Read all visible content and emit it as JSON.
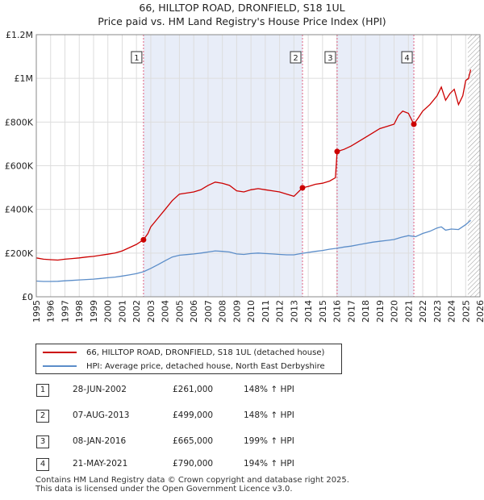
{
  "header": {
    "title": "66, HILLTOP ROAD, DRONFIELD, S18 1UL",
    "subtitle": "Price paid vs. HM Land Registry's House Price Index (HPI)"
  },
  "chart_data": {
    "type": "line",
    "title": "66, HILLTOP ROAD, DRONFIELD, S18 1UL",
    "subtitle": "Price paid vs. HM Land Registry's House Price Index (HPI)",
    "xlabel": "",
    "ylabel": "",
    "xlim": [
      1995,
      2026
    ],
    "ylim": [
      0,
      1200000
    ],
    "x_ticks": [
      1995,
      1996,
      1997,
      1998,
      1999,
      2000,
      2001,
      2002,
      2003,
      2004,
      2005,
      2006,
      2007,
      2008,
      2009,
      2010,
      2011,
      2012,
      2013,
      2014,
      2015,
      2016,
      2017,
      2018,
      2019,
      2020,
      2021,
      2022,
      2023,
      2024,
      2025,
      2026
    ],
    "y_ticks": [
      {
        "value": 0,
        "label": "£0"
      },
      {
        "value": 200000,
        "label": "£200K"
      },
      {
        "value": 400000,
        "label": "£400K"
      },
      {
        "value": 600000,
        "label": "£600K"
      },
      {
        "value": 800000,
        "label": "£800K"
      },
      {
        "value": 1000000,
        "label": "£1M"
      },
      {
        "value": 1200000,
        "label": "£1.2M"
      }
    ],
    "grid": true,
    "shaded_regions": [
      {
        "from": 2002.49,
        "to": 2013.6
      },
      {
        "from": 2016.02,
        "to": 2021.38
      }
    ],
    "hatched_future_from": 2025.15,
    "series": [
      {
        "name": "66, HILLTOP ROAD, DRONFIELD, S18 1UL (detached house)",
        "color": "#cc0000",
        "points": [
          [
            1995.0,
            178000
          ],
          [
            1995.5,
            172000
          ],
          [
            1996.0,
            170000
          ],
          [
            1996.5,
            168000
          ],
          [
            1997.0,
            172000
          ],
          [
            1997.5,
            175000
          ],
          [
            1998.0,
            178000
          ],
          [
            1998.5,
            182000
          ],
          [
            1999.0,
            185000
          ],
          [
            1999.5,
            190000
          ],
          [
            2000.0,
            195000
          ],
          [
            2000.5,
            200000
          ],
          [
            2001.0,
            210000
          ],
          [
            2001.5,
            225000
          ],
          [
            2002.0,
            240000
          ],
          [
            2002.49,
            261000
          ],
          [
            2002.8,
            290000
          ],
          [
            2003.0,
            320000
          ],
          [
            2003.5,
            360000
          ],
          [
            2004.0,
            400000
          ],
          [
            2004.5,
            440000
          ],
          [
            2005.0,
            470000
          ],
          [
            2005.5,
            475000
          ],
          [
            2006.0,
            480000
          ],
          [
            2006.5,
            490000
          ],
          [
            2007.0,
            510000
          ],
          [
            2007.5,
            525000
          ],
          [
            2008.0,
            520000
          ],
          [
            2008.5,
            510000
          ],
          [
            2009.0,
            485000
          ],
          [
            2009.5,
            480000
          ],
          [
            2010.0,
            490000
          ],
          [
            2010.5,
            495000
          ],
          [
            2011.0,
            490000
          ],
          [
            2011.5,
            485000
          ],
          [
            2012.0,
            480000
          ],
          [
            2012.5,
            470000
          ],
          [
            2013.0,
            460000
          ],
          [
            2013.6,
            499000
          ],
          [
            2014.0,
            505000
          ],
          [
            2014.5,
            515000
          ],
          [
            2015.0,
            520000
          ],
          [
            2015.5,
            530000
          ],
          [
            2015.9,
            545000
          ],
          [
            2016.02,
            665000
          ],
          [
            2016.5,
            675000
          ],
          [
            2017.0,
            690000
          ],
          [
            2017.5,
            710000
          ],
          [
            2018.0,
            730000
          ],
          [
            2018.5,
            750000
          ],
          [
            2019.0,
            770000
          ],
          [
            2019.5,
            780000
          ],
          [
            2020.0,
            790000
          ],
          [
            2020.3,
            830000
          ],
          [
            2020.6,
            850000
          ],
          [
            2021.0,
            840000
          ],
          [
            2021.38,
            790000
          ],
          [
            2021.7,
            820000
          ],
          [
            2022.0,
            850000
          ],
          [
            2022.5,
            880000
          ],
          [
            2023.0,
            920000
          ],
          [
            2023.3,
            960000
          ],
          [
            2023.6,
            900000
          ],
          [
            2023.9,
            930000
          ],
          [
            2024.2,
            950000
          ],
          [
            2024.5,
            880000
          ],
          [
            2024.8,
            920000
          ],
          [
            2025.0,
            990000
          ],
          [
            2025.2,
            1000000
          ],
          [
            2025.35,
            1040000
          ]
        ]
      },
      {
        "name": "HPI: Average price, detached house, North East Derbyshire",
        "color": "#5b8dc9",
        "points": [
          [
            1995.0,
            72000
          ],
          [
            1995.5,
            70000
          ],
          [
            1996.0,
            70000
          ],
          [
            1996.5,
            71000
          ],
          [
            1997.0,
            73000
          ],
          [
            1997.5,
            75000
          ],
          [
            1998.0,
            77000
          ],
          [
            1998.5,
            79000
          ],
          [
            1999.0,
            81000
          ],
          [
            1999.5,
            84000
          ],
          [
            2000.0,
            87000
          ],
          [
            2000.5,
            90000
          ],
          [
            2001.0,
            95000
          ],
          [
            2001.5,
            100000
          ],
          [
            2002.0,
            106000
          ],
          [
            2002.5,
            115000
          ],
          [
            2003.0,
            130000
          ],
          [
            2003.5,
            147000
          ],
          [
            2004.0,
            165000
          ],
          [
            2004.5,
            182000
          ],
          [
            2005.0,
            190000
          ],
          [
            2005.5,
            193000
          ],
          [
            2006.0,
            196000
          ],
          [
            2006.5,
            200000
          ],
          [
            2007.0,
            205000
          ],
          [
            2007.5,
            210000
          ],
          [
            2008.0,
            208000
          ],
          [
            2008.5,
            205000
          ],
          [
            2009.0,
            196000
          ],
          [
            2009.5,
            194000
          ],
          [
            2010.0,
            198000
          ],
          [
            2010.5,
            200000
          ],
          [
            2011.0,
            198000
          ],
          [
            2011.5,
            196000
          ],
          [
            2012.0,
            194000
          ],
          [
            2012.5,
            192000
          ],
          [
            2013.0,
            192000
          ],
          [
            2013.5,
            198000
          ],
          [
            2014.0,
            203000
          ],
          [
            2014.5,
            208000
          ],
          [
            2015.0,
            212000
          ],
          [
            2015.5,
            218000
          ],
          [
            2016.0,
            222000
          ],
          [
            2016.5,
            228000
          ],
          [
            2017.0,
            232000
          ],
          [
            2017.5,
            238000
          ],
          [
            2018.0,
            244000
          ],
          [
            2018.5,
            250000
          ],
          [
            2019.0,
            254000
          ],
          [
            2019.5,
            258000
          ],
          [
            2020.0,
            262000
          ],
          [
            2020.5,
            272000
          ],
          [
            2021.0,
            280000
          ],
          [
            2021.5,
            275000
          ],
          [
            2022.0,
            290000
          ],
          [
            2022.5,
            300000
          ],
          [
            2023.0,
            315000
          ],
          [
            2023.3,
            320000
          ],
          [
            2023.6,
            305000
          ],
          [
            2024.0,
            310000
          ],
          [
            2024.5,
            308000
          ],
          [
            2025.0,
            330000
          ],
          [
            2025.35,
            350000
          ]
        ]
      }
    ],
    "sale_markers": [
      {
        "id": "1",
        "x": 2002.49,
        "y": 261000
      },
      {
        "id": "2",
        "x": 2013.6,
        "y": 499000
      },
      {
        "id": "3",
        "x": 2016.02,
        "y": 665000
      },
      {
        "id": "4",
        "x": 2021.38,
        "y": 790000
      }
    ]
  },
  "legend": {
    "property_label": "66, HILLTOP ROAD, DRONFIELD, S18 1UL (detached house)",
    "property_color": "#cc0000",
    "hpi_label": "HPI: Average price, detached house, North East Derbyshire",
    "hpi_color": "#5b8dc9"
  },
  "transactions": [
    {
      "num": "1",
      "date": "28-JUN-2002",
      "price": "£261,000",
      "hpi": "148% ↑ HPI"
    },
    {
      "num": "2",
      "date": "07-AUG-2013",
      "price": "£499,000",
      "hpi": "148% ↑ HPI"
    },
    {
      "num": "3",
      "date": "08-JAN-2016",
      "price": "£665,000",
      "hpi": "199% ↑ HPI"
    },
    {
      "num": "4",
      "date": "21-MAY-2021",
      "price": "£790,000",
      "hpi": "194% ↑ HPI"
    }
  ],
  "footer": {
    "line1": "Contains HM Land Registry data © Crown copyright and database right 2025.",
    "line2": "This data is licensed under the Open Government Licence v3.0."
  }
}
